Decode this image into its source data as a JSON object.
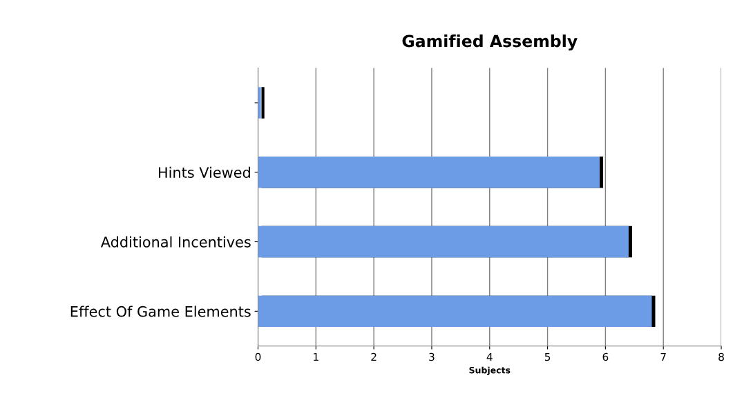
{
  "chart_data": {
    "type": "bar",
    "orientation": "horizontal",
    "title": "Gamified Assembly",
    "xlabel": "Subjects",
    "categories": [
      null,
      "Hints Viewed",
      "Additional Incentives",
      "Effect Of Game Elements"
    ],
    "values": [
      0.05,
      5.9,
      6.4,
      6.8
    ],
    "color": "#6d9ce6",
    "xlim": [
      0,
      8
    ],
    "xticks": [
      0,
      1,
      2,
      3,
      4,
      5,
      6,
      7,
      8
    ],
    "grid": "x",
    "legend": false
  }
}
